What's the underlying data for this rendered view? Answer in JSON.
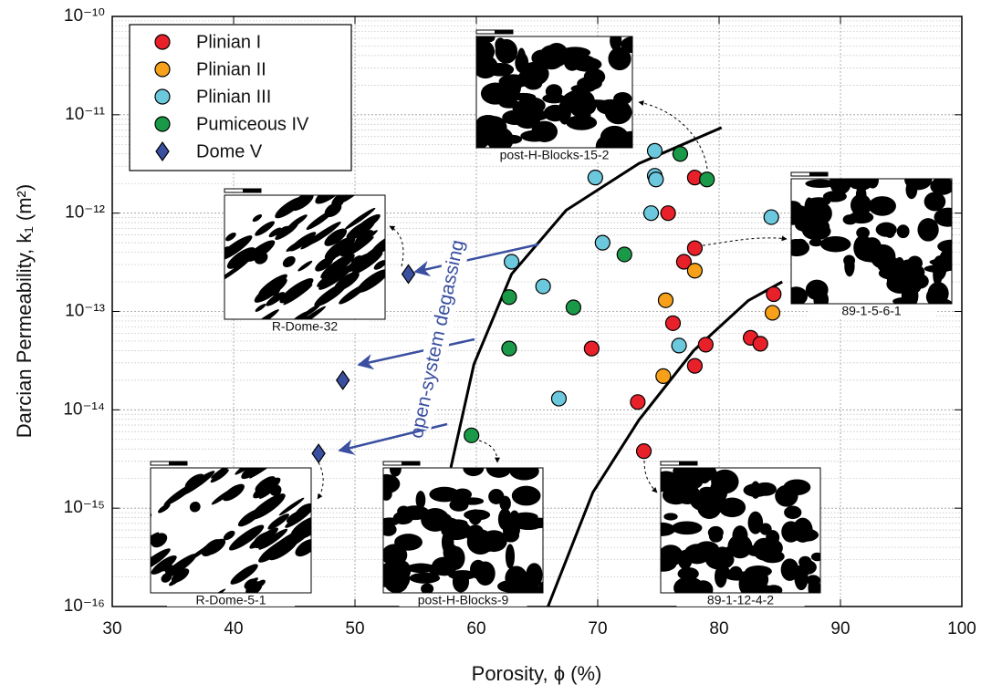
{
  "chart_data": {
    "type": "scatter",
    "x_label": "Porosity, ϕ (%)",
    "y_label": "Darcian Permeability, k₁ (m²)",
    "annotation": "open-system degassing",
    "log_y": true,
    "grid": true,
    "legend": "upper left",
    "xlim": [
      30,
      100
    ],
    "xticks": [
      30,
      40,
      50,
      60,
      70,
      80,
      90,
      100
    ],
    "ylim": [
      1e-16,
      1e-10
    ],
    "yticks": [
      {
        "value": 1e-16,
        "label": "10⁻¹⁶"
      },
      {
        "value": 1e-15,
        "label": "10⁻¹⁵"
      },
      {
        "value": 1e-14,
        "label": "10⁻¹⁴"
      },
      {
        "value": 1e-13,
        "label": "10⁻¹³"
      },
      {
        "value": 1e-12,
        "label": "10⁻¹²"
      },
      {
        "value": 1e-11,
        "label": "10⁻¹¹"
      },
      {
        "value": 1e-10,
        "label": "10⁻¹⁰"
      }
    ],
    "series": [
      {
        "name": "Plinian I",
        "color": "#e8202a",
        "marker": "circle",
        "x": [
          78.0,
          75.8,
          78.0,
          77.1,
          84.5,
          76.2,
          69.5,
          78.9,
          82.6,
          83.4,
          78.0,
          73.3,
          73.8
        ],
        "values": [
          2.3e-12,
          1e-12,
          4.4e-13,
          3.2e-13,
          1.5e-13,
          7.6e-14,
          4.2e-14,
          4.6e-14,
          5.4e-14,
          4.7e-14,
          2.8e-14,
          1.2e-14,
          3.8e-15
        ]
      },
      {
        "name": "Plinian II",
        "color": "#f7a11a",
        "marker": "circle",
        "x": [
          78.0,
          75.6,
          84.4,
          75.4
        ],
        "values": [
          2.6e-13,
          1.3e-13,
          9.7e-14,
          2.2e-14
        ]
      },
      {
        "name": "Plinian III",
        "color": "#6cc8dc",
        "marker": "circle",
        "x": [
          74.7,
          74.7,
          74.8,
          69.8,
          74.4,
          84.3,
          70.4,
          62.9,
          65.5,
          76.7,
          66.8
        ],
        "values": [
          4.3e-12,
          2.4e-12,
          2.2e-12,
          2.3e-12,
          1e-12,
          9.1e-13,
          5e-13,
          3.2e-13,
          1.8e-13,
          4.5e-14,
          1.3e-14
        ]
      },
      {
        "name": "Pumiceous IV",
        "color": "#1a9a48",
        "marker": "circle",
        "x": [
          76.8,
          79.0,
          72.2,
          62.7,
          68.0,
          62.7,
          59.6
        ],
        "values": [
          4e-12,
          2.2e-12,
          3.8e-13,
          1.4e-13,
          1.1e-13,
          4.2e-14,
          5.5e-15
        ]
      },
      {
        "name": "Dome V",
        "color": "#3a4fa0",
        "marker": "diamond",
        "x": [
          54.4,
          49.0,
          47.0
        ],
        "values": [
          2.4e-13,
          2e-14,
          3.6e-15
        ]
      }
    ],
    "curves": [
      {
        "color": "#000000",
        "x": [
          57.9,
          59.8,
          62.9,
          67.4,
          73.4,
          80.2
        ],
        "values": [
          2.6e-15,
          2.9e-14,
          2.4e-13,
          1.07e-12,
          3.2e-12,
          7.4e-12
        ]
      },
      {
        "color": "#000000",
        "x": [
          65.9,
          69.6,
          73.4,
          77.9,
          82.4,
          85.2
        ],
        "values": [
          1e-16,
          1.45e-15,
          7.9e-15,
          4e-14,
          1.29e-13,
          2e-13
        ]
      }
    ],
    "insets": [
      {
        "label": "post-H-Blocks-15-2"
      },
      {
        "label": "R-Dome-32"
      },
      {
        "label": "89-1-5-6-1"
      },
      {
        "label": "R-Dome-5-1"
      },
      {
        "label": "post-H-Blocks-9"
      },
      {
        "label": "89-1-12-4-2"
      }
    ]
  }
}
